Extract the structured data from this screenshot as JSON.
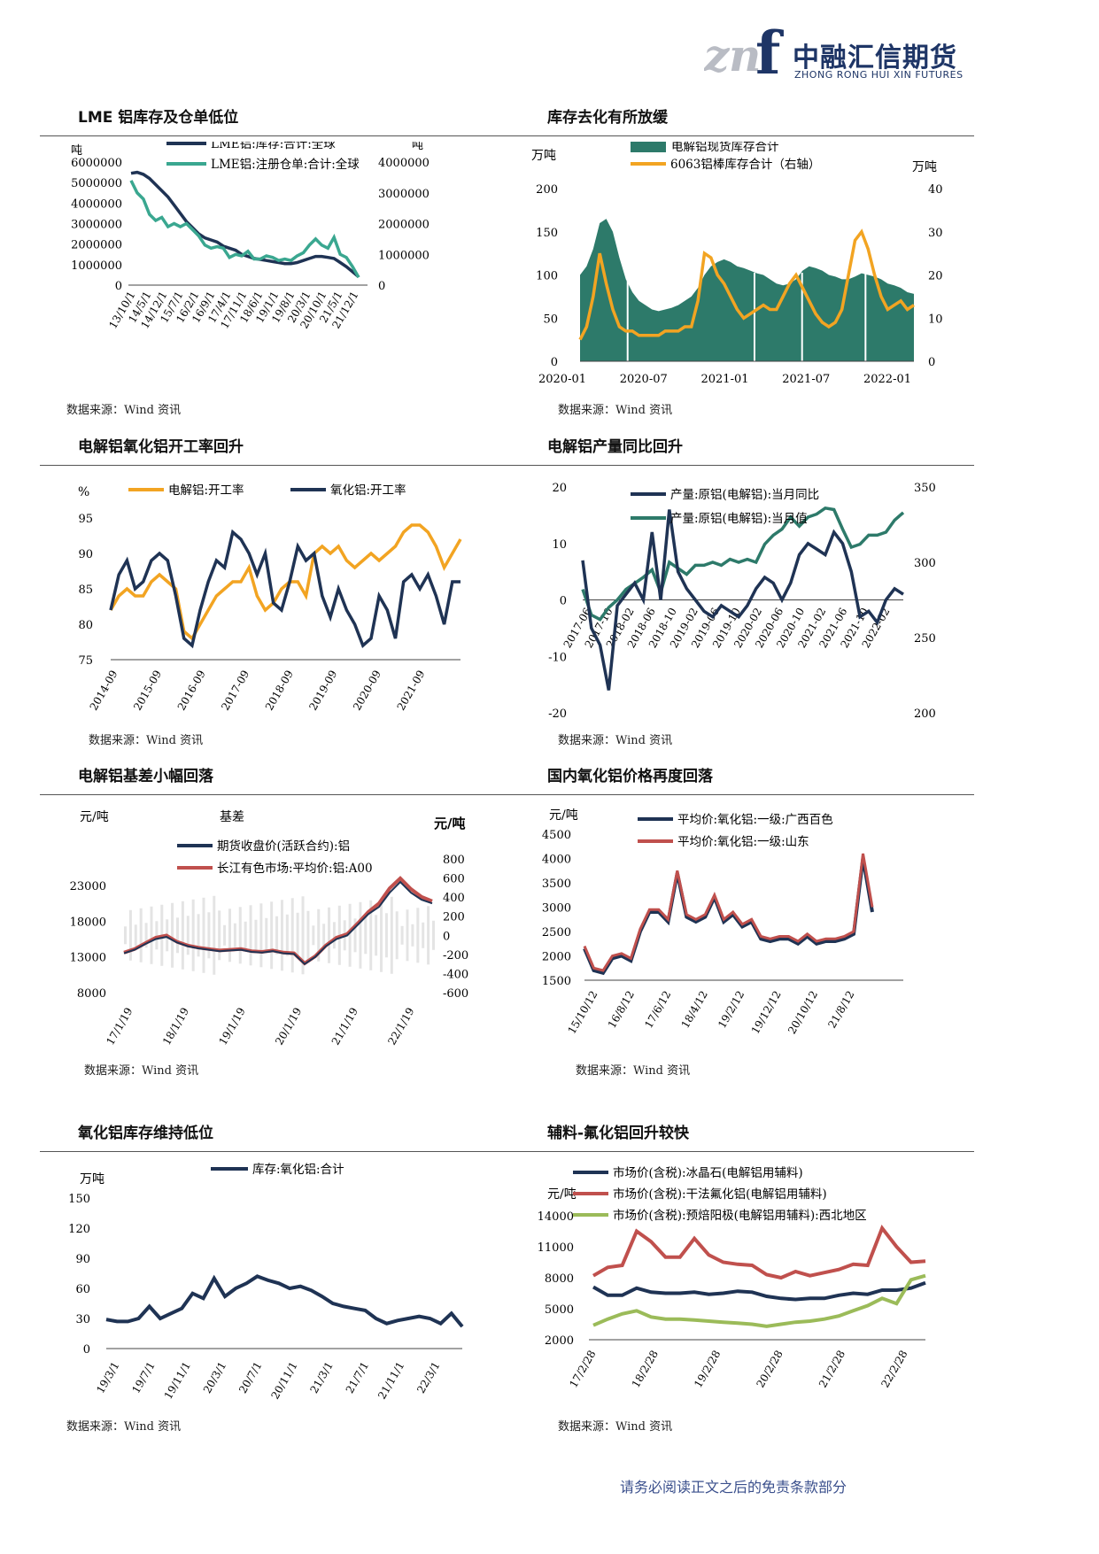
{
  "logo": {
    "cn": "中融汇信期货",
    "en": "ZHONG RONG HUI XIN FUTURES",
    "mark": "znf"
  },
  "footer": "请务必阅读正文之后的免责条款部分",
  "source_text": "数据来源：Wind 资讯",
  "panels": [
    {
      "title": "LME 铝库存及仓单低位"
    },
    {
      "title": "库存去化有所放缓"
    },
    {
      "title": "电解铝氧化铝开工率回升"
    },
    {
      "title": "电解铝产量同比回升"
    },
    {
      "title": "电解铝基差小幅回落"
    },
    {
      "title": "国内氧化铝价格再度回落"
    },
    {
      "title": "氧化铝库存维持低位"
    },
    {
      "title": "辅料-氟化铝回升较快"
    }
  ],
  "colors": {
    "navy": "#1f3354",
    "teal": "#3aa790",
    "orange": "#f2a422",
    "red": "#c0504d",
    "darkgreen": "#2d7a6a",
    "green": "#9bbb59",
    "bluegrey": "#1e3566"
  },
  "chart_data": [
    {
      "type": "line",
      "title": "LME 铝库存及仓单低位",
      "ylabel_left": "吨",
      "ylabel_right": "吨",
      "y_left_ticks": [
        "6000000",
        "5000000",
        "4000000",
        "3000000",
        "2000000",
        "1000000",
        "0"
      ],
      "y_right_ticks": [
        "4000000",
        "3000000",
        "2000000",
        "1000000",
        "0"
      ],
      "x_ticks": [
        "13/10/1",
        "14/5/1",
        "14/12/1",
        "15/7/1",
        "16/2/1",
        "16/9/1",
        "17/4/1",
        "17/11/1",
        "18/6/1",
        "19/1/1",
        "19/8/1",
        "20/3/1",
        "20/10/1",
        "21/5/1",
        "21/12/1"
      ],
      "series": [
        {
          "name": "LME铝:库存:合计:全球",
          "axis": "left",
          "values": [
            5450000,
            5500000,
            5400000,
            5200000,
            4900000,
            4600000,
            4300000,
            3900000,
            3500000,
            3100000,
            2800000,
            2500000,
            2300000,
            2200000,
            2100000,
            1900000,
            1800000,
            1700000,
            1500000,
            1400000,
            1300000,
            1250000,
            1200000,
            1150000,
            1100000,
            1050000,
            1050000,
            1100000,
            1200000,
            1300000,
            1400000,
            1400000,
            1350000,
            1300000,
            1100000,
            900000,
            650000,
            400000
          ]
        },
        {
          "name": "LME铝:注册仓单:合计:全球",
          "axis": "right",
          "values": [
            3400000,
            3000000,
            2800000,
            2300000,
            2100000,
            2200000,
            1900000,
            2000000,
            1900000,
            2000000,
            1800000,
            1600000,
            1300000,
            1200000,
            1250000,
            1200000,
            900000,
            1000000,
            950000,
            1100000,
            850000,
            850000,
            950000,
            900000,
            800000,
            850000,
            800000,
            950000,
            1050000,
            1300000,
            1500000,
            1300000,
            1200000,
            1550000,
            1000000,
            900000,
            600000,
            250000
          ]
        }
      ]
    },
    {
      "type": "area+line",
      "title": "库存去化有所放缓",
      "ylabel_left": "万吨",
      "ylabel_right": "万吨",
      "y_left_ticks": [
        "200",
        "150",
        "100",
        "50",
        "0"
      ],
      "y_right_ticks": [
        "40",
        "30",
        "20",
        "10",
        "0"
      ],
      "x_ticks": [
        "2020-01",
        "2020-07",
        "2021-01",
        "2021-07",
        "2022-01"
      ],
      "series": [
        {
          "name": "电解铝现货库存合计",
          "axis": "left",
          "values": [
            100,
            110,
            130,
            160,
            165,
            150,
            120,
            95,
            80,
            70,
            65,
            60,
            58,
            60,
            62,
            65,
            70,
            75,
            85,
            100,
            110,
            115,
            118,
            115,
            110,
            108,
            105,
            102,
            100,
            95,
            90,
            88,
            90,
            95,
            105,
            110,
            108,
            105,
            100,
            98,
            95,
            95,
            98,
            102,
            100,
            98,
            95,
            90,
            88,
            85,
            80,
            78
          ]
        },
        {
          "name": "6063铝棒库存合计（右轴）",
          "axis": "right",
          "values": [
            5,
            8,
            15,
            25,
            18,
            12,
            8,
            7,
            7,
            6,
            6,
            6,
            6,
            7,
            7,
            7,
            8,
            8,
            14,
            25,
            24,
            20,
            18,
            15,
            12,
            10,
            11,
            12,
            13,
            12,
            12,
            15,
            18,
            20,
            17,
            14,
            11,
            9,
            8,
            9,
            12,
            20,
            28,
            30,
            26,
            20,
            15,
            12,
            13,
            14,
            12,
            13
          ]
        }
      ]
    },
    {
      "type": "line",
      "title": "电解铝氧化铝开工率回升",
      "ylabel": "%",
      "y_ticks": [
        "95",
        "90",
        "85",
        "80",
        "75"
      ],
      "x_ticks": [
        "2014-09",
        "2015-09",
        "2016-09",
        "2017-09",
        "2018-09",
        "2019-09",
        "2020-09",
        "2021-09"
      ],
      "series": [
        {
          "name": "电解铝:开工率",
          "values": [
            82,
            84,
            85,
            84,
            84,
            86,
            87,
            86,
            85,
            79,
            78,
            80,
            82,
            84,
            85,
            86,
            86,
            88,
            84,
            82,
            83,
            85,
            86,
            86,
            84,
            90,
            91,
            90,
            91,
            89,
            88,
            89,
            90,
            89,
            90,
            91,
            93,
            94,
            94,
            93,
            91,
            88,
            90,
            92
          ]
        },
        {
          "name": "氧化铝:开工率",
          "values": [
            82,
            87,
            89,
            85,
            86,
            89,
            90,
            89,
            84,
            78,
            77,
            82,
            86,
            89,
            88,
            93,
            92,
            90,
            87,
            90,
            83,
            82,
            86,
            91,
            89,
            90,
            84,
            81,
            85,
            82,
            80,
            77,
            78,
            84,
            82,
            78,
            86,
            87,
            85,
            87,
            84,
            80,
            86,
            86
          ]
        }
      ]
    },
    {
      "type": "line",
      "title": "电解铝产量同比回升",
      "y_left_ticks": [
        "20",
        "10",
        "0",
        "-10",
        "-20"
      ],
      "y_right_ticks": [
        "350",
        "300",
        "250",
        "200"
      ],
      "x_ticks": [
        "2017-06",
        "2017-10",
        "2018-02",
        "2018-06",
        "2018-10",
        "2019-02",
        "2019-06",
        "2019-10",
        "2020-02",
        "2020-06",
        "2020-10",
        "2021-02",
        "2021-06",
        "2021-10",
        "2022-02"
      ],
      "series": [
        {
          "name": "产量:原铝(电解铝):当月同比",
          "axis": "left",
          "values": [
            7,
            -5,
            -8,
            -16,
            -1,
            1,
            3,
            0,
            12,
            0,
            16,
            5,
            2,
            0,
            -2,
            -3,
            -1,
            -2,
            -3,
            -1,
            2,
            4,
            3,
            0,
            3,
            8,
            10,
            9,
            8,
            12,
            10,
            5,
            -3,
            -2,
            -4,
            0,
            2,
            1
          ]
        },
        {
          "name": "产量:原铝(电解铝):当月值",
          "axis": "right",
          "values": [
            282,
            265,
            262,
            270,
            275,
            282,
            286,
            290,
            295,
            280,
            300,
            296,
            292,
            298,
            298,
            300,
            298,
            302,
            300,
            302,
            300,
            312,
            318,
            322,
            330,
            324,
            330,
            332,
            336,
            335,
            322,
            310,
            312,
            318,
            318,
            320,
            328,
            333
          ]
        }
      ]
    },
    {
      "type": "line+area",
      "title": "电解铝基差小幅回落",
      "ylabel_left": "元/吨",
      "ylabel_right": "元/吨",
      "legend_title": "基差",
      "y_left_ticks": [
        "23000",
        "18000",
        "13000",
        "8000"
      ],
      "y_right_ticks": [
        "800",
        "600",
        "400",
        "200",
        "0",
        "-200",
        "-400",
        "-600"
      ],
      "x_ticks": [
        "17/1/19",
        "18/1/19",
        "19/1/19",
        "20/1/19",
        "21/1/19",
        "22/1/19"
      ],
      "series": [
        {
          "name": "期货收盘价(活跃合约):铝",
          "axis": "left",
          "values": [
            13500,
            14000,
            14800,
            15500,
            15800,
            15000,
            14500,
            14200,
            14000,
            13800,
            13900,
            14000,
            13700,
            13600,
            13800,
            13500,
            13400,
            12000,
            13000,
            14500,
            15500,
            16000,
            17500,
            19000,
            20000,
            22000,
            23500,
            22000,
            21000,
            20500
          ]
        },
        {
          "name": "长江有色市场:平均价:铝:A00",
          "axis": "left",
          "values": [
            13600,
            14100,
            14900,
            15700,
            16000,
            15100,
            14600,
            14300,
            14100,
            13900,
            14000,
            14100,
            13800,
            13700,
            13900,
            13600,
            13500,
            12100,
            13100,
            14600,
            15700,
            16200,
            17700,
            19300,
            20500,
            22600,
            24000,
            22500,
            21400,
            20800
          ]
        }
      ]
    },
    {
      "type": "line",
      "title": "国内氧化铝价格再度回落",
      "ylabel": "元/吨",
      "y_ticks": [
        "4500",
        "4000",
        "3500",
        "3000",
        "2500",
        "2000",
        "1500"
      ],
      "x_ticks": [
        "15/10/12",
        "16/8/12",
        "17/6/12",
        "18/4/12",
        "19/2/12",
        "19/12/12",
        "20/10/12",
        "21/8/12"
      ],
      "series": [
        {
          "name": "平均价:氧化铝:一级:广西百色",
          "values": [
            2150,
            1700,
            1650,
            1950,
            2000,
            1900,
            2500,
            2900,
            2900,
            2700,
            3700,
            2800,
            2700,
            2800,
            3200,
            2700,
            2850,
            2600,
            2700,
            2350,
            2300,
            2350,
            2350,
            2250,
            2400,
            2250,
            2300,
            2300,
            2350,
            2450,
            4000,
            2900
          ]
        },
        {
          "name": "平均价:氧化铝:一级:山东",
          "values": [
            2200,
            1750,
            1700,
            2000,
            2050,
            1950,
            2550,
            2950,
            2950,
            2750,
            3750,
            2850,
            2750,
            2850,
            3250,
            2750,
            2900,
            2650,
            2750,
            2400,
            2350,
            2400,
            2400,
            2300,
            2450,
            2300,
            2350,
            2350,
            2400,
            2500,
            4100,
            3000
          ]
        }
      ]
    },
    {
      "type": "line",
      "title": "氧化铝库存维持低位",
      "ylabel": "万吨",
      "y_ticks": [
        "150",
        "120",
        "90",
        "60",
        "30",
        "0"
      ],
      "x_ticks": [
        "19/3/1",
        "19/7/1",
        "19/11/1",
        "20/3/1",
        "20/7/1",
        "20/11/1",
        "21/3/1",
        "21/7/1",
        "21/11/1",
        "22/3/1"
      ],
      "series": [
        {
          "name": "库存:氧化铝:合计",
          "values": [
            29,
            27,
            27,
            30,
            42,
            30,
            35,
            40,
            55,
            50,
            70,
            52,
            60,
            65,
            72,
            68,
            65,
            60,
            62,
            58,
            52,
            45,
            42,
            40,
            38,
            30,
            25,
            28,
            30,
            32,
            30,
            25,
            35,
            22
          ]
        }
      ]
    },
    {
      "type": "line",
      "title": "辅料-氟化铝回升较快",
      "ylabel": "元/吨",
      "y_ticks": [
        "14000",
        "11000",
        "8000",
        "5000",
        "2000"
      ],
      "x_ticks": [
        "17/2/28",
        "18/2/28",
        "19/2/28",
        "20/2/28",
        "21/2/28",
        "22/2/28"
      ],
      "series": [
        {
          "name": "市场价(含税):冰晶石(电解铝用辅料)",
          "values": [
            7100,
            6300,
            6300,
            7000,
            6600,
            6500,
            6500,
            6600,
            6400,
            6500,
            6700,
            6600,
            6200,
            6000,
            5900,
            6000,
            6000,
            6300,
            6500,
            6400,
            6800,
            6800,
            7000,
            7500
          ]
        },
        {
          "name": "市场价(含税):干法氟化铝(电解铝用辅料)",
          "values": [
            8200,
            9000,
            9200,
            12500,
            11500,
            10000,
            10000,
            11800,
            10200,
            9500,
            9300,
            9200,
            8300,
            8000,
            8600,
            8200,
            8500,
            8800,
            9300,
            9200,
            12800,
            11000,
            9500,
            9600
          ]
        },
        {
          "name": "市场价(含税):预焙阳极(电解铝用辅料):西北地区",
          "values": [
            3400,
            4000,
            4500,
            4800,
            4200,
            4000,
            4000,
            3900,
            3800,
            3700,
            3600,
            3500,
            3300,
            3500,
            3700,
            3800,
            4000,
            4300,
            4800,
            5300,
            6000,
            5500,
            7800,
            8200
          ]
        }
      ]
    }
  ]
}
